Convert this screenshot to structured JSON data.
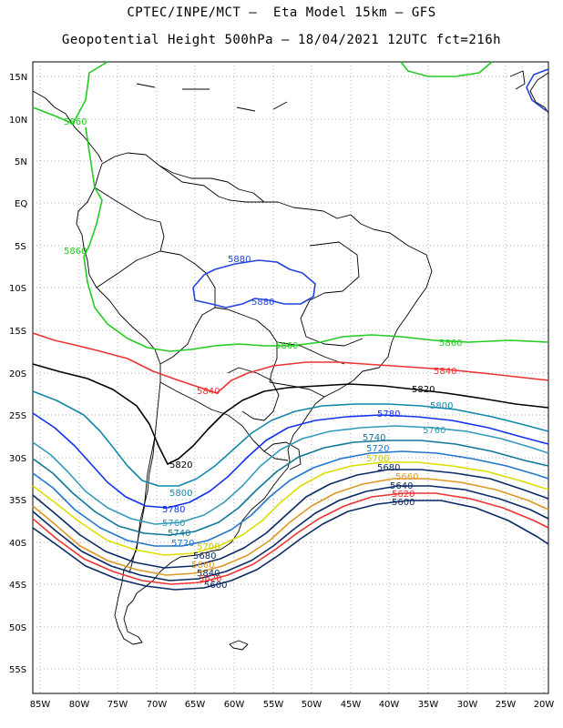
{
  "header": {
    "line1": "CPTEC/INPE/MCT –  Eta Model 15km – GFS",
    "line2": "Geopotential Height 500hPa – 18/04/2021 12UTC fct=216h"
  },
  "lat_ticks": [
    "15N",
    "10N",
    "5N",
    "EQ",
    "5S",
    "10S",
    "15S",
    "20S",
    "25S",
    "30S",
    "35S",
    "40S",
    "45S",
    "50S",
    "55S"
  ],
  "lon_ticks": [
    "85W",
    "80W",
    "75W",
    "70W",
    "65W",
    "60W",
    "55W",
    "50W",
    "45W",
    "40W",
    "35W",
    "30W",
    "25W",
    "20W"
  ],
  "contours": [
    {
      "value": "5880",
      "color": "#2244dd"
    },
    {
      "value": "5860",
      "color": "#22cc22"
    },
    {
      "value": "5840",
      "color": "#ee3333"
    },
    {
      "value": "5820",
      "color": "#000000"
    },
    {
      "value": "5800",
      "color": "#1188aa"
    },
    {
      "value": "5780",
      "color": "#1133ee"
    },
    {
      "value": "5760",
      "color": "#3399bb"
    },
    {
      "value": "5740",
      "color": "#117799"
    },
    {
      "value": "5720",
      "color": "#2277cc"
    },
    {
      "value": "5700",
      "color": "#dddd00"
    },
    {
      "value": "5680",
      "color": "#0a2a66"
    },
    {
      "value": "5660",
      "color": "#dd9922"
    },
    {
      "value": "5640",
      "color": "#0a2a66"
    },
    {
      "value": "5620",
      "color": "#ee3333"
    },
    {
      "value": "5600",
      "color": "#0a2a66"
    }
  ],
  "labels": {
    "l5880_a": "5880",
    "l5880_b": "5880",
    "l5860_a": "5860",
    "l5860_b": "5860",
    "l5860_c": "5860",
    "l5860_d": "5860",
    "l5840_a": "5840",
    "l5840_b": "5840",
    "l5840_c": "5840",
    "l5820_a": "5820",
    "l5820_b": "5820",
    "l5800_a": "5800",
    "l5800_b": "5800",
    "l5780_a": "5780",
    "l5780_b": "5780",
    "l5760_a": "5760",
    "l5760_b": "5760",
    "l5740_a": "5740",
    "l5740_b": "5740",
    "l5720_a": "5720",
    "l5720_b": "5720",
    "l5700_a": "5700",
    "l5700_b": "5700",
    "l5680_a": "5680",
    "l5680_b": "5680",
    "l5660_a": "5660",
    "l5660_b": "5660",
    "l5640_b": "5640",
    "l5620_a": "5620",
    "l5620_b": "5620",
    "l5600_a": "5600",
    "l5600_b": "5600"
  }
}
